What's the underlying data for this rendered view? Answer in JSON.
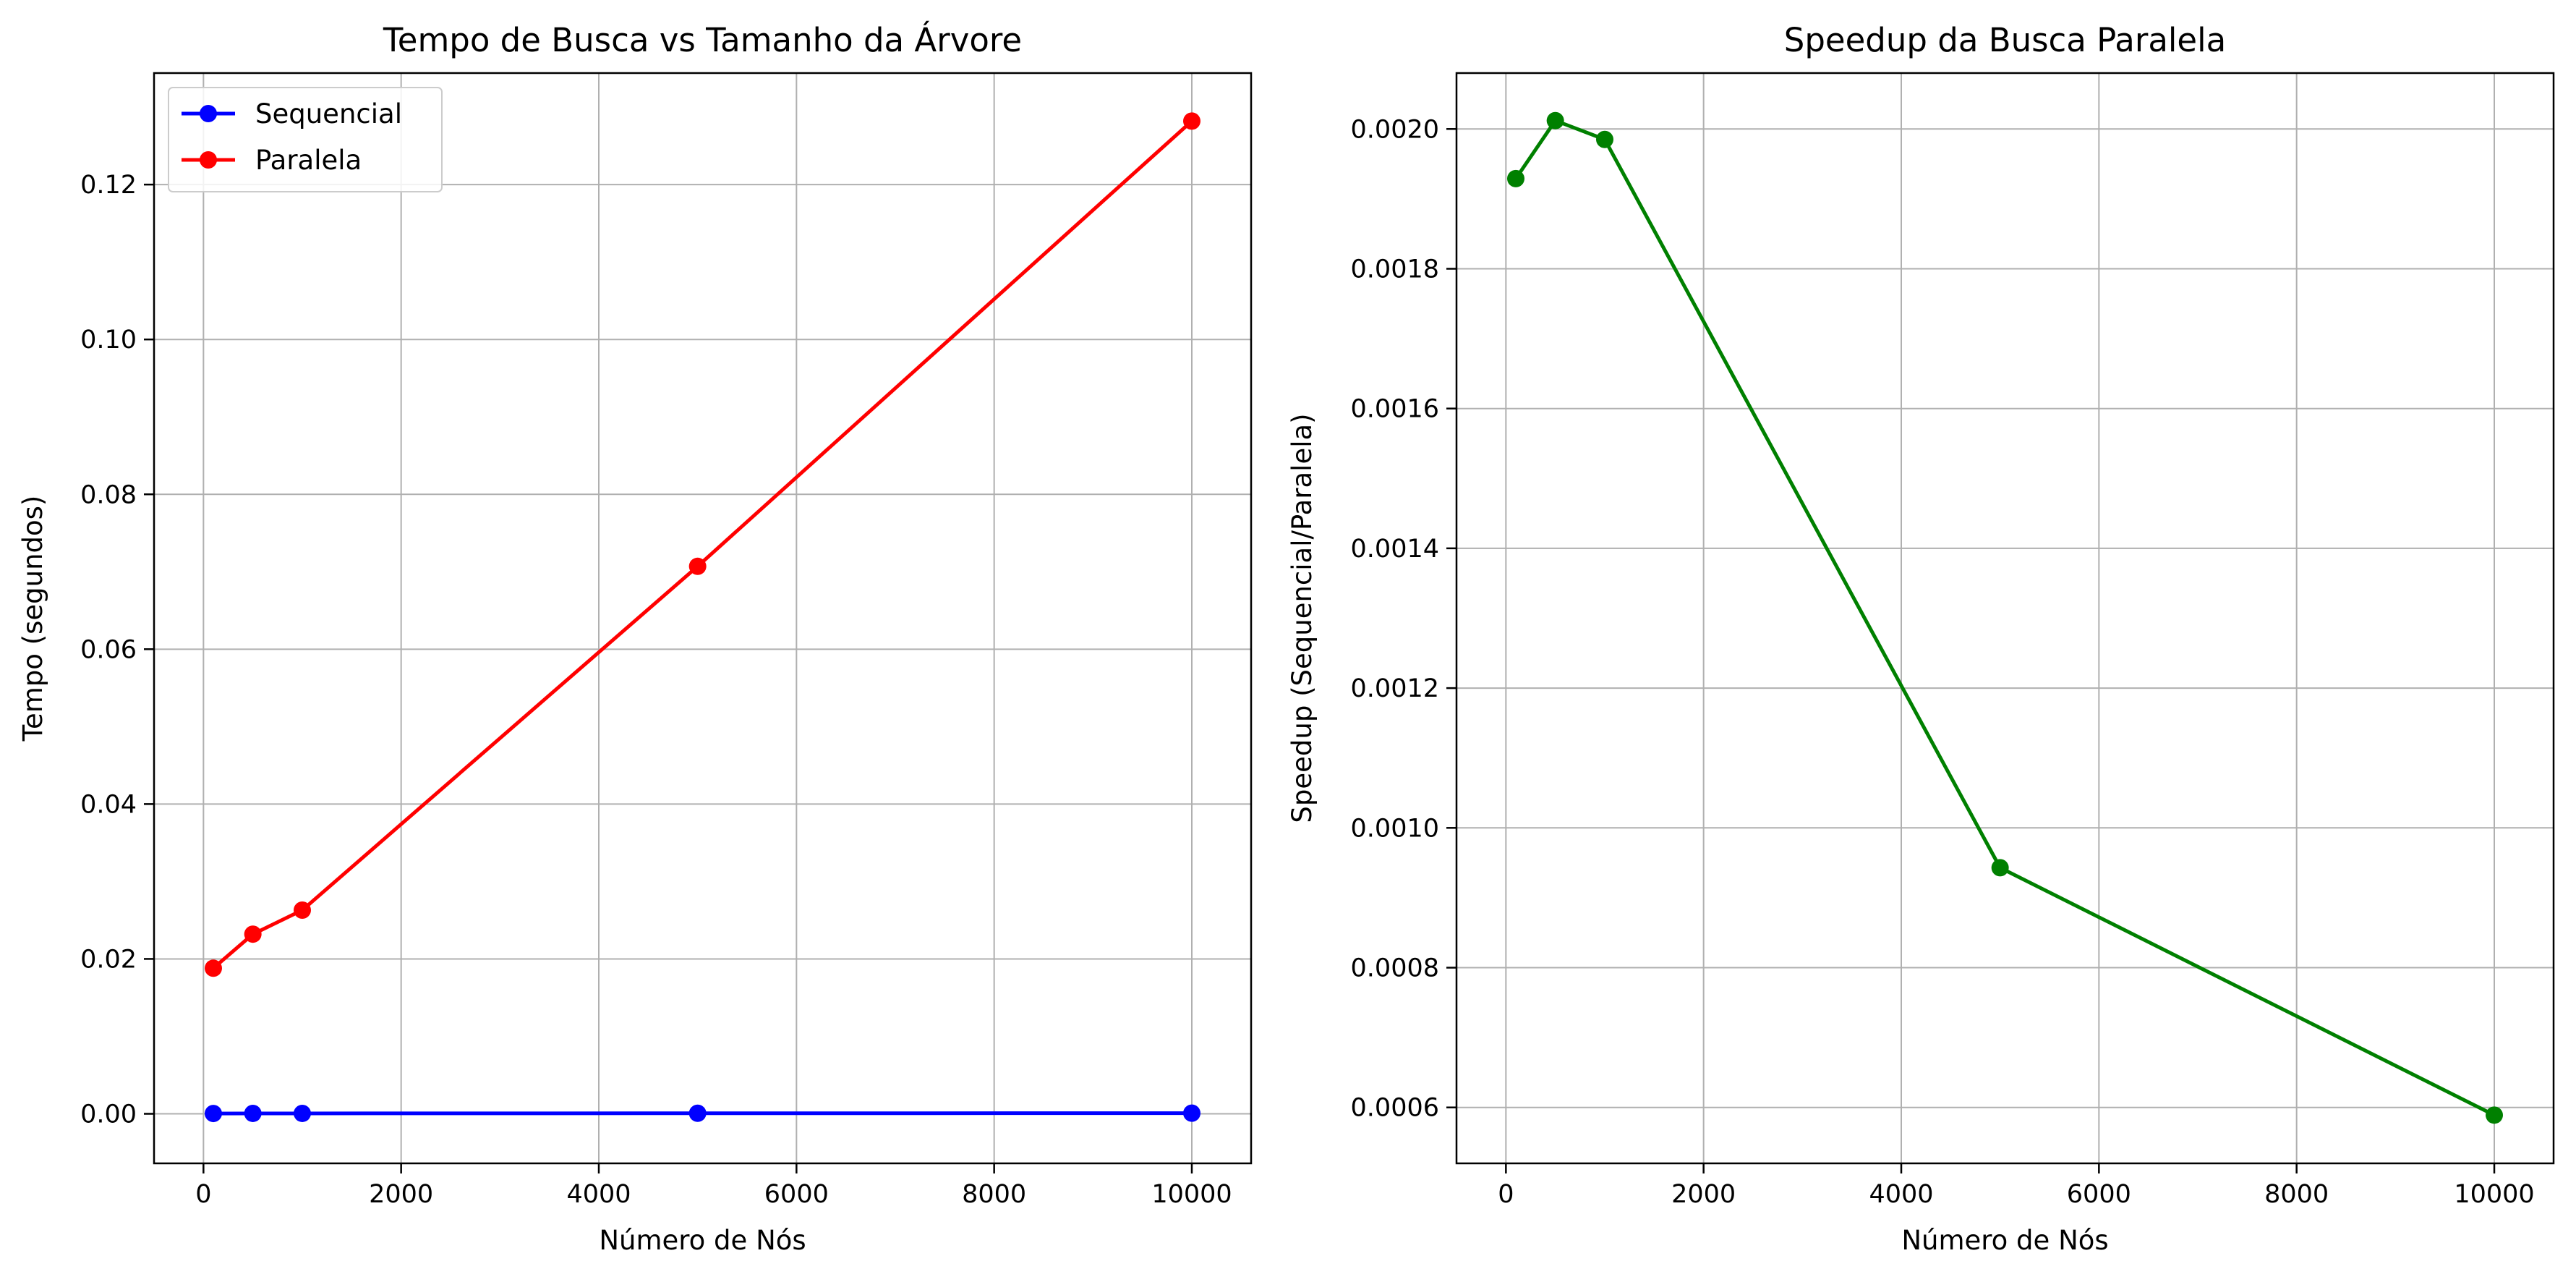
{
  "chart_data": [
    {
      "type": "line",
      "title": "Tempo de Busca vs Tamanho da Árvore",
      "xlabel": "Número de Nós",
      "ylabel": "Tempo (segundos)",
      "xlim": [
        -500,
        10600
      ],
      "ylim": [
        -0.0064,
        0.1344
      ],
      "xticks": [
        0,
        2000,
        4000,
        6000,
        8000,
        10000
      ],
      "xtick_labels": [
        "0",
        "2000",
        "4000",
        "6000",
        "8000",
        "10000"
      ],
      "yticks": [
        0.0,
        0.02,
        0.04,
        0.06,
        0.08,
        0.1,
        0.12
      ],
      "ytick_labels": [
        "0.00",
        "0.02",
        "0.04",
        "0.06",
        "0.08",
        "0.10",
        "0.12"
      ],
      "grid": true,
      "legend_position": "top-left",
      "x": [
        100,
        500,
        1000,
        5000,
        10000
      ],
      "series": [
        {
          "name": "Sequencial",
          "color": "#0000ff",
          "values": [
            4e-05,
            5e-05,
            5e-05,
            7e-05,
            8e-05
          ]
        },
        {
          "name": "Paralela",
          "color": "#ff0000",
          "values": [
            0.0188,
            0.0232,
            0.0263,
            0.0707,
            0.1282
          ]
        }
      ]
    },
    {
      "type": "line",
      "title": "Speedup da Busca Paralela",
      "xlabel": "Número de Nós",
      "ylabel": "Speedup (Sequencial/Paralela)",
      "xlim": [
        -500,
        10600
      ],
      "ylim": [
        0.00052,
        0.00208
      ],
      "xticks": [
        0,
        2000,
        4000,
        6000,
        8000,
        10000
      ],
      "xtick_labels": [
        "0",
        "2000",
        "4000",
        "6000",
        "8000",
        "10000"
      ],
      "yticks": [
        0.0006,
        0.0008,
        0.001,
        0.0012,
        0.0014,
        0.0016,
        0.0018,
        0.002
      ],
      "ytick_labels": [
        "0.0006",
        "0.0008",
        "0.0010",
        "0.0012",
        "0.0014",
        "0.0016",
        "0.0018",
        "0.0020"
      ],
      "grid": true,
      "x": [
        100,
        500,
        1000,
        5000,
        10000
      ],
      "series": [
        {
          "color": "#008000",
          "values": [
            0.001929,
            0.002012,
            0.001985,
            0.000943,
            0.000589
          ]
        }
      ]
    }
  ]
}
